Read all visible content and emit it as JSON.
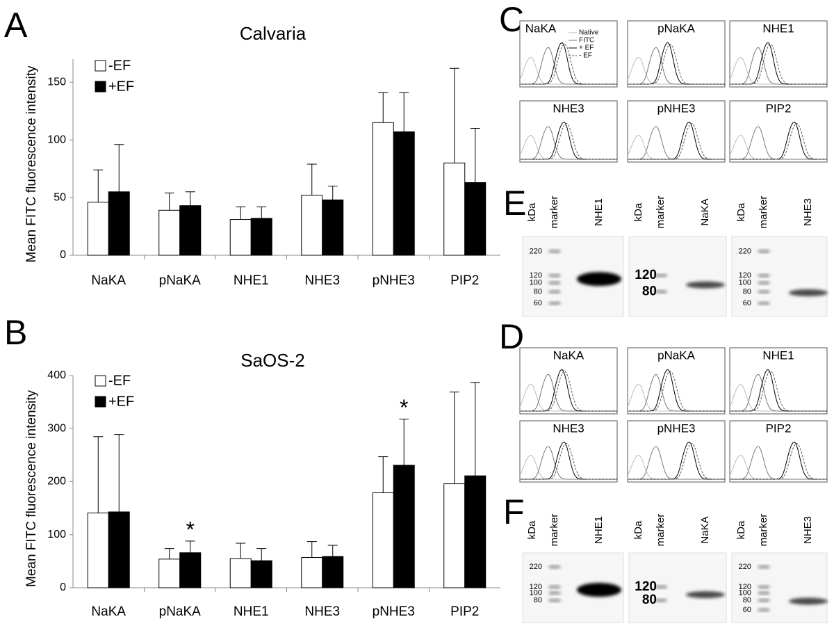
{
  "panel_labels": [
    "A",
    "B",
    "C",
    "D",
    "E",
    "F"
  ],
  "chart_data": [
    {
      "type": "bar",
      "title": "Calvaria",
      "y_label": "Mean FITC fluorescence intensity",
      "categories": [
        "NaKA",
        "pNaKA",
        "NHE1",
        "NHE3",
        "pNHE3",
        "PIP2"
      ],
      "series": [
        {
          "name": "-EF",
          "color": "#ffffff",
          "values": [
            46,
            39,
            31,
            52,
            115,
            80
          ],
          "errors": [
            28,
            15,
            11,
            27,
            26,
            82
          ]
        },
        {
          "name": "+EF",
          "color": "#000000",
          "values": [
            55,
            43,
            32,
            48,
            107,
            63
          ],
          "errors": [
            41,
            12,
            10,
            12,
            34,
            47
          ]
        }
      ],
      "ylim": [
        0,
        170
      ],
      "yticks": [
        0,
        50,
        100,
        150
      ]
    },
    {
      "type": "bar",
      "title": "SaOS-2",
      "y_label": "Mean FITC fluorescence intensity",
      "categories": [
        "NaKA",
        "pNaKA",
        "NHE1",
        "NHE3",
        "pNHE3",
        "PIP2"
      ],
      "series": [
        {
          "name": "-EF",
          "color": "#ffffff",
          "values": [
            141,
            54,
            55,
            57,
            179,
            196
          ],
          "errors": [
            144,
            20,
            29,
            30,
            68,
            173
          ]
        },
        {
          "name": "+EF",
          "color": "#000000",
          "values": [
            143,
            66,
            51,
            59,
            231,
            211
          ],
          "errors": [
            146,
            22,
            23,
            21,
            87,
            176
          ]
        }
      ],
      "ylim": [
        0,
        400
      ],
      "yticks": [
        0,
        100,
        200,
        300,
        400
      ],
      "annotations": [
        {
          "text": "*",
          "category": "pNaKA",
          "series": "+EF"
        },
        {
          "text": "*",
          "category": "pNHE3",
          "series": "+EF"
        }
      ]
    }
  ],
  "flow_panels": [
    {
      "histograms": [
        "NaKA",
        "pNaKA",
        "NHE1",
        "NHE3",
        "pNHE3",
        "PIP2"
      ],
      "legend": [
        "Native",
        "FITC",
        "+ EF",
        "- EF"
      ]
    },
    {
      "histograms": [
        "NaKA",
        "pNaKA",
        "NHE1",
        "NHE3",
        "pNHE3",
        "PIP2"
      ]
    }
  ],
  "blots": [
    [
      {
        "headers": [
          "kDa",
          "marker",
          "NHE1"
        ],
        "markers": [
          220,
          120,
          100,
          80,
          60
        ]
      },
      {
        "headers": [
          "kDa",
          "marker",
          "NaKA"
        ],
        "markers": [
          120,
          80
        ]
      },
      {
        "headers": [
          "kDa",
          "marker",
          "NHE3"
        ],
        "markers": [
          220,
          120,
          100,
          80,
          60
        ]
      }
    ],
    [
      {
        "headers": [
          "kDa",
          "marker",
          "NHE1"
        ],
        "markers": [
          220,
          120,
          100,
          80
        ]
      },
      {
        "headers": [
          "kDa",
          "marker",
          "NaKA"
        ],
        "markers": [
          120,
          80
        ]
      },
      {
        "headers": [
          "kDa",
          "marker",
          "NHE3"
        ],
        "markers": [
          220,
          120,
          100,
          80,
          60
        ]
      }
    ]
  ]
}
